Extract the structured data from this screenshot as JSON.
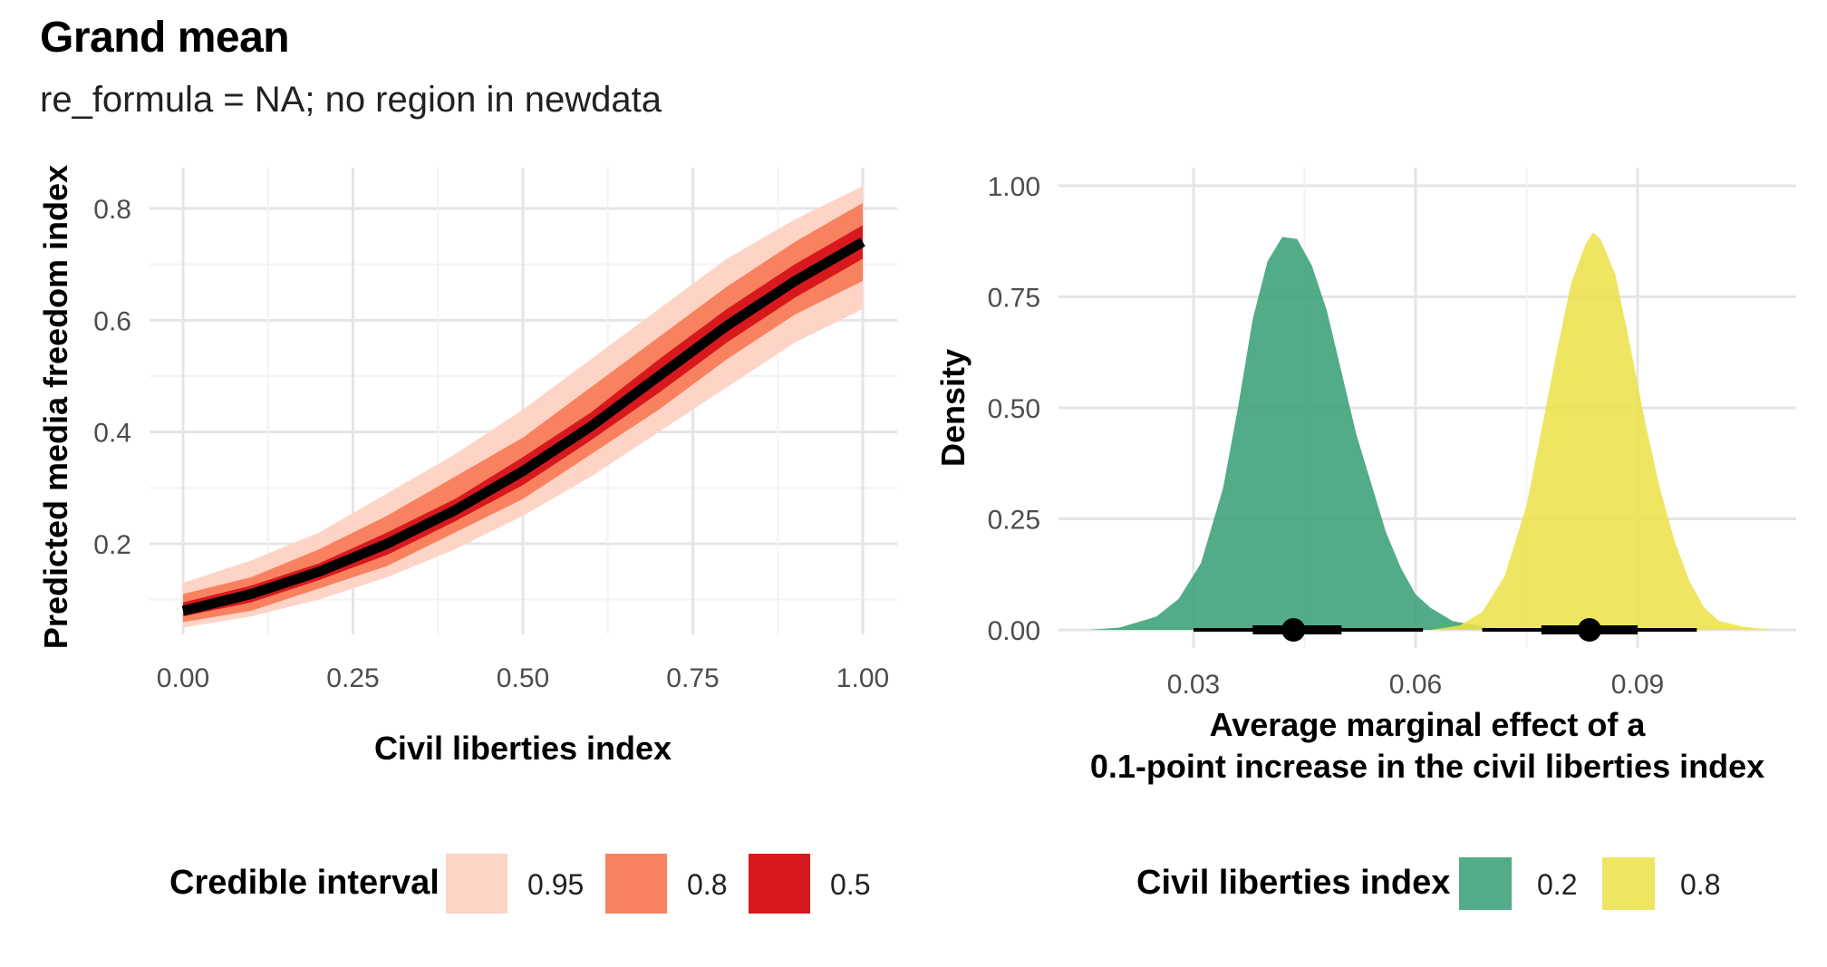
{
  "title": "Grand mean",
  "subtitle": "re_formula = NA; no region in newdata",
  "colors": {
    "ribbon_95": "#fdd4c6",
    "ribbon_80": "#f8825f",
    "ribbon_50": "#d7191e",
    "line": "#000000",
    "density_02": "#3aa177",
    "density_08": "#ece34c"
  },
  "chart_data": [
    {
      "type": "line",
      "xlabel": "Civil liberties index",
      "ylabel": "Predicted media freedom index",
      "xlim": [
        0,
        1
      ],
      "ylim": [
        0.02,
        0.87
      ],
      "x_ticks": [
        "0.00",
        "0.25",
        "0.50",
        "0.75",
        "1.00"
      ],
      "y_ticks": [
        "0.2",
        "0.4",
        "0.6",
        "0.8"
      ],
      "grid": true,
      "legend_title": "Credible interval",
      "legend_position": "bottom",
      "legend": [
        "0.95",
        "0.8",
        "0.5"
      ],
      "x": [
        0,
        0.1,
        0.2,
        0.3,
        0.4,
        0.5,
        0.6,
        0.7,
        0.8,
        0.9,
        1.0
      ],
      "series": [
        {
          "name": "median",
          "values": [
            0.08,
            0.11,
            0.15,
            0.2,
            0.26,
            0.33,
            0.41,
            0.5,
            0.59,
            0.67,
            0.74
          ]
        },
        {
          "name": "0.95",
          "lower": [
            0.05,
            0.07,
            0.1,
            0.14,
            0.19,
            0.25,
            0.32,
            0.4,
            0.48,
            0.56,
            0.62
          ],
          "upper": [
            0.13,
            0.17,
            0.22,
            0.29,
            0.36,
            0.44,
            0.53,
            0.62,
            0.71,
            0.78,
            0.84
          ]
        },
        {
          "name": "0.8",
          "lower": [
            0.06,
            0.08,
            0.12,
            0.16,
            0.22,
            0.28,
            0.36,
            0.44,
            0.53,
            0.61,
            0.67
          ],
          "upper": [
            0.11,
            0.14,
            0.19,
            0.25,
            0.32,
            0.39,
            0.48,
            0.57,
            0.66,
            0.74,
            0.81
          ]
        },
        {
          "name": "0.5",
          "lower": [
            0.07,
            0.095,
            0.135,
            0.18,
            0.24,
            0.305,
            0.385,
            0.47,
            0.56,
            0.64,
            0.71
          ],
          "upper": [
            0.095,
            0.125,
            0.165,
            0.22,
            0.28,
            0.355,
            0.435,
            0.53,
            0.62,
            0.7,
            0.77
          ]
        }
      ]
    },
    {
      "type": "area",
      "xlabel_lines": [
        "Average marginal effect of a",
        "0.1-point increase in the civil liberties index"
      ],
      "ylabel": "Density",
      "xlim": [
        0.0135,
        0.1115
      ],
      "ylim": [
        -0.06,
        1.05
      ],
      "x_ticks": [
        "0.03",
        "0.06",
        "0.09"
      ],
      "y_ticks": [
        "0.00",
        "0.25",
        "0.50",
        "0.75",
        "1.00"
      ],
      "grid": true,
      "legend_title": "Civil liberties index",
      "legend_position": "bottom",
      "series": [
        {
          "name": "0.2",
          "x": [
            0.016,
            0.02,
            0.025,
            0.028,
            0.031,
            0.034,
            0.036,
            0.038,
            0.04,
            0.042,
            0.044,
            0.046,
            0.048,
            0.05,
            0.052,
            0.054,
            0.056,
            0.058,
            0.06,
            0.062,
            0.065,
            0.07,
            0.076
          ],
          "density": [
            0.0,
            0.005,
            0.03,
            0.07,
            0.15,
            0.32,
            0.5,
            0.7,
            0.83,
            0.885,
            0.88,
            0.82,
            0.72,
            0.58,
            0.44,
            0.33,
            0.22,
            0.14,
            0.08,
            0.05,
            0.02,
            0.005,
            0.0
          ],
          "point": 0.0435,
          "interval_66": [
            0.038,
            0.05
          ],
          "interval_95": [
            0.03,
            0.061
          ]
        },
        {
          "name": "0.8",
          "x": [
            0.062,
            0.066,
            0.069,
            0.072,
            0.075,
            0.077,
            0.079,
            0.081,
            0.083,
            0.084,
            0.085,
            0.087,
            0.089,
            0.091,
            0.093,
            0.095,
            0.097,
            0.099,
            0.101,
            0.104,
            0.108
          ],
          "density": [
            0.0,
            0.01,
            0.04,
            0.12,
            0.28,
            0.45,
            0.62,
            0.78,
            0.87,
            0.895,
            0.88,
            0.8,
            0.64,
            0.47,
            0.32,
            0.2,
            0.11,
            0.05,
            0.02,
            0.008,
            0.0
          ],
          "point": 0.0835,
          "interval_66": [
            0.077,
            0.09
          ],
          "interval_95": [
            0.069,
            0.098
          ]
        }
      ]
    }
  ]
}
